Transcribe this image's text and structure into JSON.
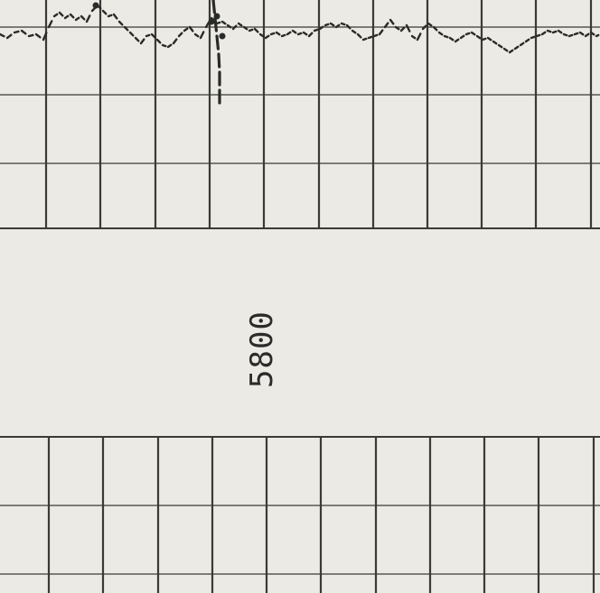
{
  "page": {
    "kind": "strip chart recorder paper",
    "background_color": "#ebeae4",
    "grid_color": "#3a3a36",
    "trace_color": "#2a2a28"
  },
  "center_label": {
    "text": "5800"
  }
}
